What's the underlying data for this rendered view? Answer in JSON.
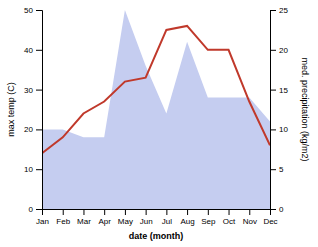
{
  "chart_data": {
    "type": "line",
    "categories": [
      "Jan",
      "Feb",
      "Mar",
      "Apr",
      "May",
      "Jun",
      "Jul",
      "Aug",
      "Sep",
      "Oct",
      "Nov",
      "Dec"
    ],
    "xlabel": "date (month)",
    "ylabel": "max temp (C)",
    "y2label": "med. precipitation (kg/m2)",
    "series": [
      {
        "type": "area",
        "axis": "y2",
        "color": "#c5cdf0",
        "values": [
          10,
          10,
          9,
          9,
          25,
          18,
          12,
          21,
          14,
          14,
          14,
          11
        ]
      },
      {
        "type": "line",
        "color": "#c0392b",
        "values": [
          14,
          18,
          24,
          27,
          32,
          33,
          45,
          46,
          40,
          40,
          27,
          16
        ]
      }
    ],
    "ylim": [
      0,
      50
    ],
    "yticks": [
      0,
      10,
      20,
      30,
      40,
      50
    ],
    "y2lim": [
      0,
      25
    ],
    "y2ticks": [
      0,
      5,
      10,
      15,
      20,
      25
    ],
    "grid": false
  }
}
